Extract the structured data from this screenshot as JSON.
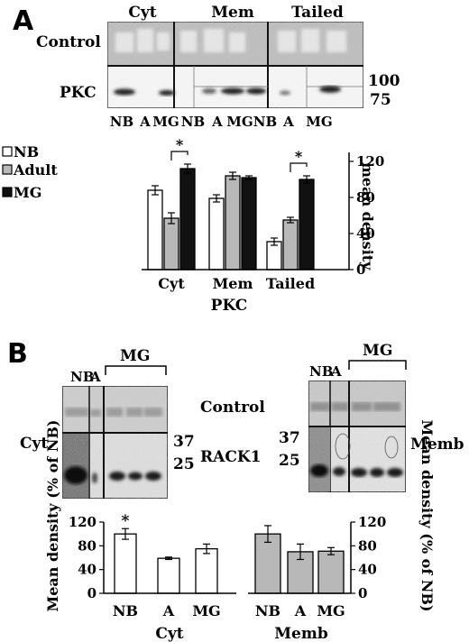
{
  "panelA": {
    "letter": "A",
    "blot": {
      "groups": [
        "Cyt",
        "Mem",
        "Tailed"
      ],
      "row_labels": [
        "Control",
        "PKC"
      ],
      "markers": [
        "100",
        "75"
      ],
      "lane_labels": [
        "NB",
        "A",
        "MG",
        "NB",
        "A",
        "MG",
        "NB",
        "A",
        "MG"
      ]
    },
    "legend": [
      "NB",
      "Adult",
      "MG"
    ],
    "chart_data": {
      "type": "bar",
      "categories": [
        "Cyt",
        "Mem",
        "Tailed"
      ],
      "xlabel": "PKC",
      "ylabel": "mean density",
      "ylim": [
        0,
        130
      ],
      "yticks": [
        "0",
        "40",
        "80",
        "120"
      ],
      "series": [
        {
          "name": "NB",
          "color": "#ffffff",
          "values": [
            88,
            79,
            31
          ],
          "errors": [
            5,
            4,
            4
          ]
        },
        {
          "name": "Adult",
          "color": "#b8b8b8",
          "values": [
            57,
            104,
            55
          ],
          "errors": [
            6,
            4,
            3
          ]
        },
        {
          "name": "MG",
          "color": "#111111",
          "values": [
            112,
            102,
            100
          ],
          "errors": [
            5,
            2,
            4
          ]
        }
      ],
      "annotations": [
        "*",
        "*"
      ],
      "significance": [
        {
          "category": "Cyt",
          "between": [
            "Adult",
            "MG"
          ],
          "label": "*"
        },
        {
          "category": "Tailed",
          "between": [
            "Adult",
            "MG"
          ],
          "label": "*"
        }
      ]
    }
  },
  "panelB": {
    "letter": "B",
    "blot": {
      "top_lanes_left": [
        "NB",
        "A"
      ],
      "top_lanes_right": [
        "NB",
        "A"
      ],
      "bracket": "MG",
      "row_labels": [
        "Control",
        "RACK1"
      ],
      "fraction_left": "Cyt.",
      "fraction_right": "Memb",
      "markers": [
        "37",
        "25"
      ]
    },
    "chart_data": [
      {
        "type": "bar",
        "categories": [
          "NB",
          "A",
          "MG"
        ],
        "xlabel": "Cyt",
        "ylabel": "Mean density (% of NB)",
        "ylim": [
          0,
          120
        ],
        "yticks": [
          "0",
          "40",
          "80",
          "120"
        ],
        "color": "#ffffff",
        "values": [
          100,
          59,
          75
        ],
        "errors": [
          9,
          2,
          8
        ],
        "annotations": [
          "*"
        ]
      },
      {
        "type": "bar",
        "categories": [
          "NB",
          "A",
          "MG"
        ],
        "xlabel": "Memb",
        "ylabel": "Mean density (% of NB)",
        "ylim": [
          0,
          120
        ],
        "yticks": [
          "0",
          "40",
          "80",
          "120"
        ],
        "color": "#b8b8b8",
        "values": [
          100,
          70,
          71
        ],
        "errors": [
          14,
          13,
          6
        ]
      }
    ]
  }
}
